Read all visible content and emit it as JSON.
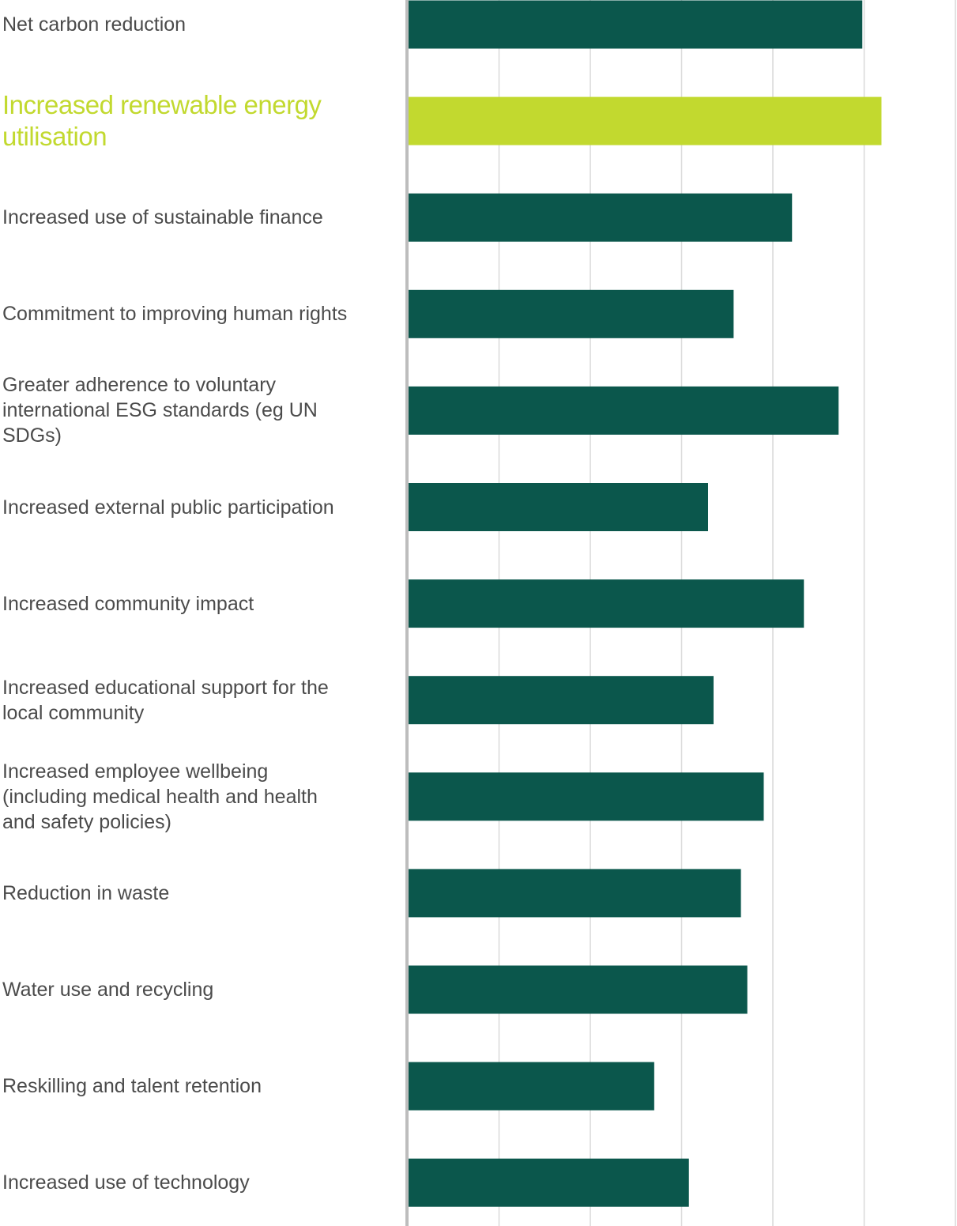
{
  "chart_data": {
    "type": "bar",
    "orientation": "horizontal",
    "categories": [
      "Net carbon reduction",
      "Increased renewable energy utilisation",
      "Increased use of sustainable finance",
      "Commitment to improving human rights",
      "Greater adherence to voluntary international ESG standards (eg UN SDGs)",
      "Increased external public participation",
      "Increased community impact",
      "Increased educational support for the local community",
      "Increased employee wellbeing (including medical health and health and safety policies)",
      "Reduction in waste",
      "Water use and recycling",
      "Reskilling and talent retention",
      "Increased use of technology"
    ],
    "values": [
      4.98,
      5.19,
      4.21,
      3.57,
      4.72,
      3.29,
      4.34,
      3.35,
      3.9,
      3.65,
      3.72,
      2.7,
      3.08
    ],
    "highlight_index": 1,
    "xlim": [
      0,
      6
    ],
    "grid": true,
    "legend": "none",
    "title": "",
    "xlabel": "",
    "ylabel": ""
  },
  "colors": {
    "bar": "#0b574c",
    "highlight": "#c2d92f",
    "label": "#4b4b4b",
    "grid": "#d9d9d9",
    "axis": "#bdbdbd"
  }
}
